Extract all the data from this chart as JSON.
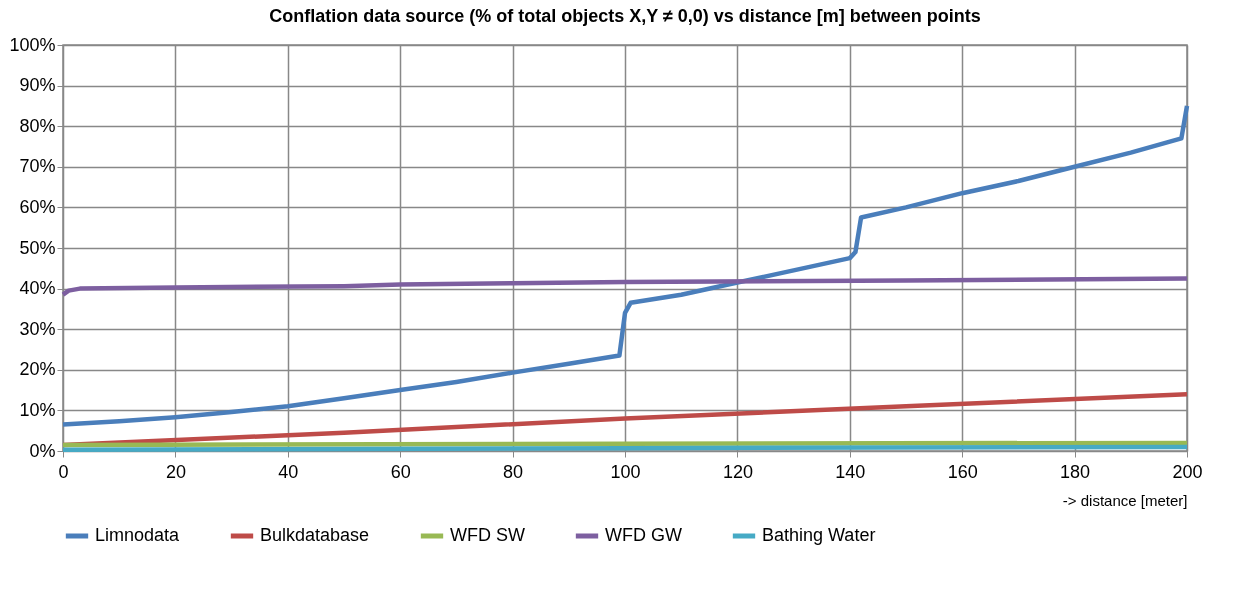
{
  "chart_data": {
    "type": "line",
    "title": "Conflation data source (% of total objects X,Y ≠ 0,0) vs distance [m] between points",
    "xlabel": "-> distance [meter]",
    "xlim": [
      0,
      200
    ],
    "xticks": [
      0,
      20,
      40,
      60,
      80,
      100,
      120,
      140,
      160,
      180,
      200
    ],
    "ylim": [
      0,
      100
    ],
    "yticks": [
      {
        "value": 0,
        "label": "0%"
      },
      {
        "value": 10,
        "label": "10%"
      },
      {
        "value": 20,
        "label": "20%"
      },
      {
        "value": 30,
        "label": "30%"
      },
      {
        "value": 40,
        "label": "40%"
      },
      {
        "value": 50,
        "label": "50%"
      },
      {
        "value": 60,
        "label": "60%"
      },
      {
        "value": 70,
        "label": "70%"
      },
      {
        "value": 80,
        "label": "80%"
      },
      {
        "value": 90,
        "label": "90%"
      },
      {
        "value": 100,
        "label": "100%"
      }
    ],
    "grid": true,
    "legend": "bottom",
    "marker": "none",
    "line_style": "solid",
    "series": [
      {
        "name": "Limnodata",
        "color": "#4a7ebb",
        "x": [
          0,
          10,
          20,
          30,
          40,
          50,
          60,
          70,
          80,
          90,
          99,
          100,
          101,
          110,
          120,
          130,
          140,
          141,
          142,
          150,
          160,
          170,
          180,
          190,
          199,
          200
        ],
        "values": [
          6.5,
          7.3,
          8.3,
          9.6,
          11,
          13,
          15,
          17,
          19.3,
          21.5,
          23.5,
          34,
          36.5,
          38.5,
          41.5,
          44.5,
          47.5,
          49,
          57.5,
          60,
          63.5,
          66.5,
          70,
          73.5,
          77,
          85
        ]
      },
      {
        "name": "Bulkdatabase",
        "color": "#be4b48",
        "x": [
          0,
          50,
          100,
          150,
          200
        ],
        "values": [
          1.5,
          4.5,
          8,
          11,
          14
        ]
      },
      {
        "name": "WFD SW",
        "color": "#98b954",
        "x": [
          0,
          100,
          200
        ],
        "values": [
          1.5,
          1.8,
          2
        ]
      },
      {
        "name": "WFD GW",
        "color": "#7d5fa0",
        "x": [
          0,
          1,
          3,
          20,
          50,
          60,
          80,
          100,
          150,
          200
        ],
        "values": [
          38.5,
          39.5,
          40,
          40.3,
          40.6,
          41,
          41.3,
          41.6,
          42,
          42.5
        ]
      },
      {
        "name": "Bathing Water",
        "color": "#46aac5",
        "x": [
          0,
          100,
          200
        ],
        "values": [
          0.3,
          0.7,
          1
        ]
      }
    ]
  }
}
